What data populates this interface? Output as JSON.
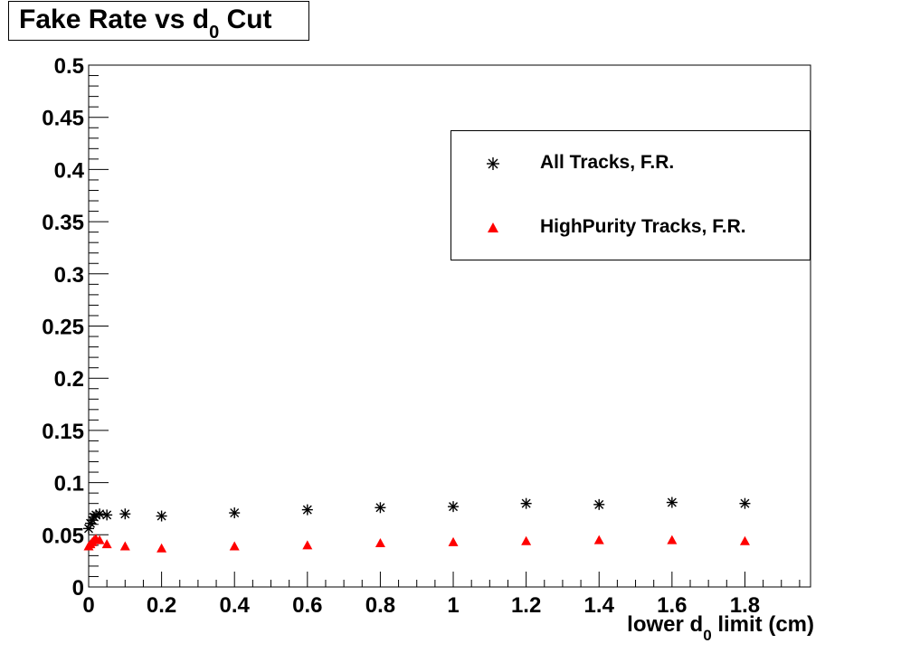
{
  "chart_data": {
    "type": "scatter",
    "title": {
      "main": "Fake Rate vs d",
      "sub": "0",
      "tail": " Cut"
    },
    "xlabel": {
      "main": "lower d",
      "sub": "0",
      "tail": " limit (cm)"
    },
    "ylabel": "",
    "xlim": [
      0,
      1.98
    ],
    "ylim": [
      0,
      0.5
    ],
    "xticks": [
      0,
      0.2,
      0.4,
      0.6,
      0.8,
      1,
      1.2,
      1.4,
      1.6,
      1.8
    ],
    "xtick_labels": [
      "0",
      "0.2",
      "0.4",
      "0.6",
      "0.8",
      "1",
      "1.2",
      "1.4",
      "1.6",
      "1.8"
    ],
    "yticks": [
      0,
      0.05,
      0.1,
      0.15,
      0.2,
      0.25,
      0.3,
      0.35,
      0.4,
      0.45,
      0.5
    ],
    "ytick_labels": [
      "0",
      "0.05",
      "0.1",
      "0.15",
      "0.2",
      "0.25",
      "0.3",
      "0.35",
      "0.4",
      "0.45",
      "0.5"
    ],
    "grid": false,
    "legend_position": "top-right",
    "series": [
      {
        "name": "All Tracks, F.R.",
        "marker": "star",
        "color": "#000000",
        "x": [
          0,
          0.005,
          0.01,
          0.015,
          0.02,
          0.03,
          0.05,
          0.1,
          0.2,
          0.4,
          0.6,
          0.8,
          1.0,
          1.2,
          1.4,
          1.6,
          1.8
        ],
        "y": [
          0.056,
          0.061,
          0.064,
          0.067,
          0.069,
          0.07,
          0.069,
          0.07,
          0.068,
          0.071,
          0.074,
          0.076,
          0.077,
          0.08,
          0.079,
          0.081,
          0.08
        ]
      },
      {
        "name": "HighPurity Tracks, F.R.",
        "marker": "triangle",
        "color": "#ff0000",
        "x": [
          0,
          0.005,
          0.01,
          0.015,
          0.02,
          0.03,
          0.05,
          0.1,
          0.2,
          0.4,
          0.6,
          0.8,
          1.0,
          1.2,
          1.4,
          1.6,
          1.8
        ],
        "y": [
          0.039,
          0.041,
          0.043,
          0.045,
          0.046,
          0.045,
          0.041,
          0.039,
          0.037,
          0.039,
          0.04,
          0.042,
          0.043,
          0.044,
          0.045,
          0.045,
          0.044
        ]
      }
    ]
  }
}
